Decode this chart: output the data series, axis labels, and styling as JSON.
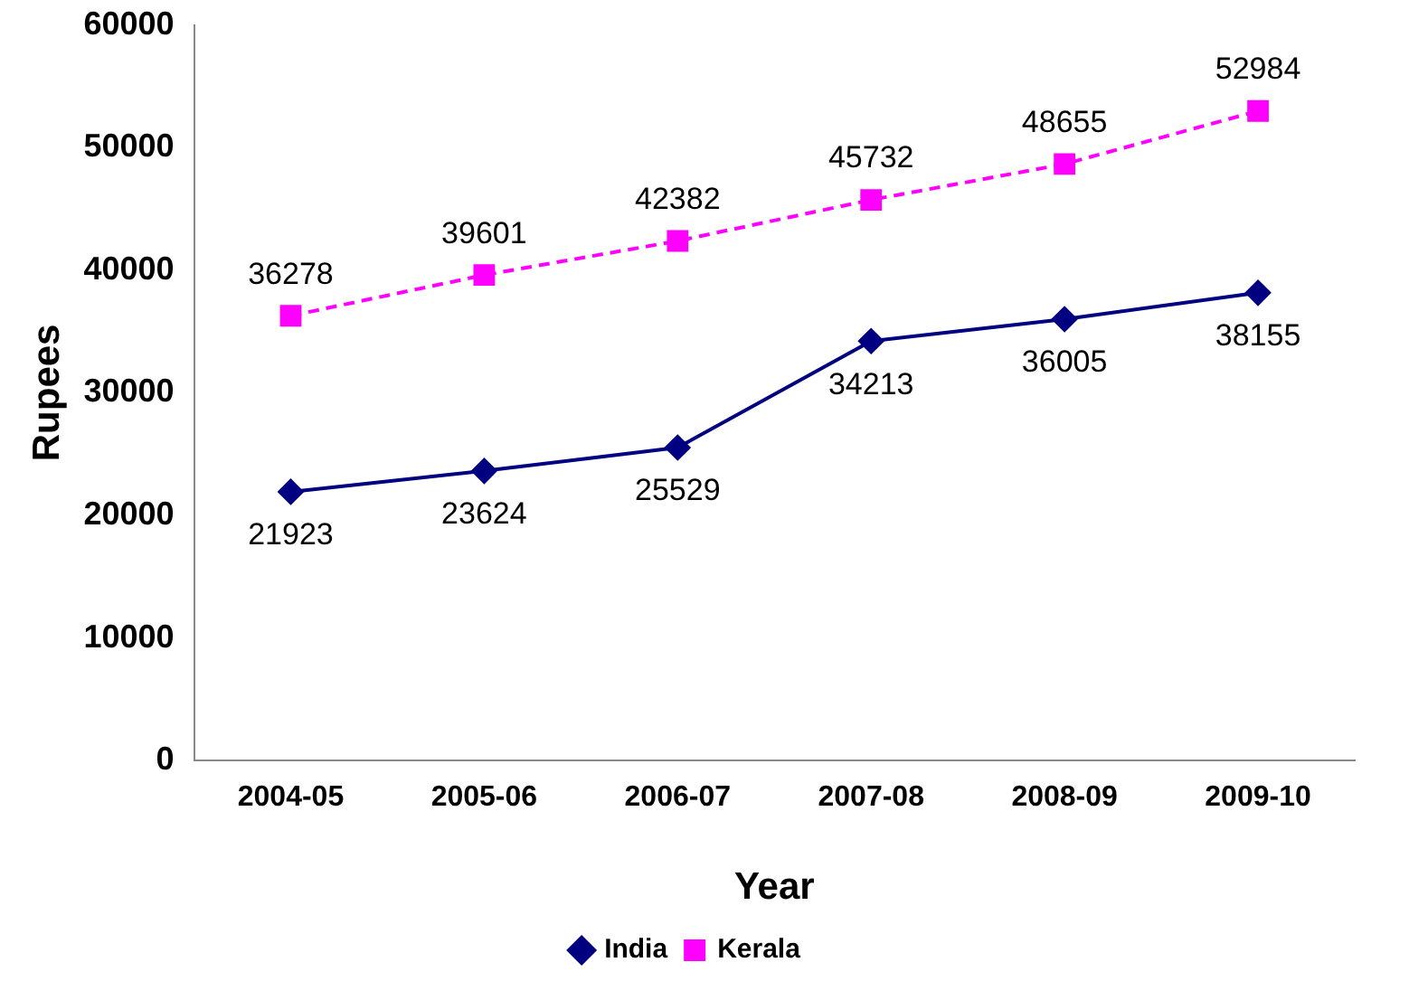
{
  "chart_data": {
    "type": "line",
    "xlabel": "Year",
    "ylabel": "Rupees",
    "categories": [
      "2004-05",
      "2005-06",
      "2006-07",
      "2007-08",
      "2008-09",
      "2009-10"
    ],
    "series": [
      {
        "name": "India",
        "color": "#000080",
        "marker": "diamond",
        "line_style": "solid",
        "values": [
          21923,
          23624,
          25529,
          34213,
          36005,
          38155
        ]
      },
      {
        "name": "Kerala",
        "color": "#ff00ff",
        "marker": "square",
        "line_style": "dashed",
        "values": [
          36278,
          39601,
          42382,
          45732,
          48655,
          52984
        ]
      }
    ],
    "ylim": [
      0,
      60000
    ],
    "yticks": [
      0,
      10000,
      20000,
      30000,
      40000,
      50000,
      60000
    ],
    "grid": false,
    "legend": "bottom",
    "data_labels": true
  }
}
